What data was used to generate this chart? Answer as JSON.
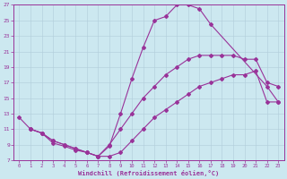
{
  "xlabel": "Windchill (Refroidissement éolien,°C)",
  "xlim": [
    0,
    23
  ],
  "ylim": [
    7,
    27
  ],
  "xticks": [
    0,
    1,
    2,
    3,
    4,
    5,
    6,
    7,
    8,
    9,
    10,
    11,
    12,
    13,
    14,
    15,
    16,
    17,
    18,
    19,
    20,
    21,
    22,
    23
  ],
  "yticks": [
    7,
    9,
    11,
    13,
    15,
    17,
    19,
    21,
    23,
    25,
    27
  ],
  "bg_color": "#cce8f0",
  "line_color": "#993399",
  "grid_color": "#b0ccda",
  "line1_x": [
    0,
    1,
    2,
    3,
    4,
    5,
    6,
    7,
    8,
    9,
    10,
    11,
    12,
    13,
    14,
    15,
    16,
    17,
    22,
    23
  ],
  "line1_y": [
    12.5,
    11.0,
    10.5,
    9.2,
    8.8,
    8.3,
    8.0,
    7.5,
    8.8,
    13.0,
    17.5,
    21.5,
    25.0,
    25.5,
    27.0,
    27.0,
    26.5,
    24.5,
    16.5,
    14.5
  ],
  "line2_x": [
    1,
    2,
    3,
    4,
    5,
    6,
    7,
    8,
    9,
    10,
    11,
    12,
    13,
    14,
    15,
    16,
    17,
    18,
    19,
    20,
    21,
    22,
    23
  ],
  "line2_y": [
    11.0,
    10.5,
    9.5,
    9.0,
    8.5,
    8.0,
    7.5,
    9.0,
    11.0,
    13.0,
    15.0,
    16.5,
    18.0,
    19.0,
    20.0,
    20.5,
    20.5,
    20.5,
    20.5,
    20.0,
    20.0,
    17.0,
    16.5
  ],
  "line3_x": [
    1,
    2,
    3,
    4,
    5,
    6,
    7,
    8,
    9,
    10,
    11,
    12,
    13,
    14,
    15,
    16,
    17,
    18,
    19,
    20,
    21,
    22,
    23
  ],
  "line3_y": [
    11.0,
    10.5,
    9.5,
    9.0,
    8.5,
    8.0,
    7.5,
    7.5,
    8.0,
    9.5,
    11.0,
    12.5,
    13.5,
    14.5,
    15.5,
    16.5,
    17.0,
    17.5,
    18.0,
    18.0,
    18.5,
    14.5,
    14.5
  ]
}
